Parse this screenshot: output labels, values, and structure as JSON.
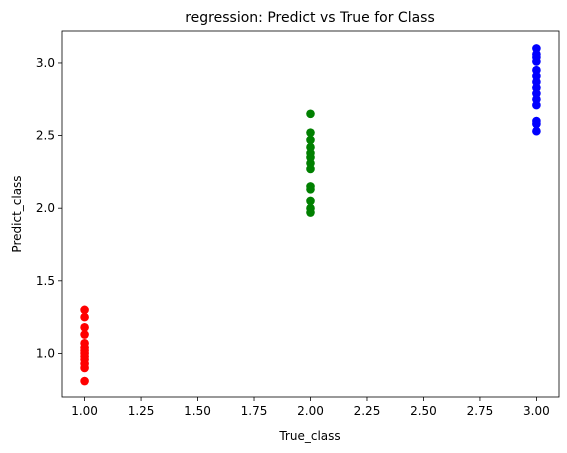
{
  "chart_data": {
    "type": "scatter",
    "title": "regression: Predict vs True for Class",
    "xlabel": "True_class",
    "ylabel": "Predict_class",
    "xlim": [
      0.9,
      3.1
    ],
    "ylim": [
      0.7,
      3.22
    ],
    "grid": false,
    "xticks": [
      "1.00",
      "1.25",
      "1.50",
      "1.75",
      "2.00",
      "2.25",
      "2.50",
      "2.75",
      "3.00"
    ],
    "xtick_values": [
      1.0,
      1.25,
      1.5,
      1.75,
      2.0,
      2.25,
      2.5,
      2.75,
      3.0
    ],
    "yticks": [
      "1.0",
      "1.5",
      "2.0",
      "2.5",
      "3.0"
    ],
    "ytick_values": [
      1.0,
      1.5,
      2.0,
      2.5,
      3.0
    ],
    "series": [
      {
        "color": "#ff0000",
        "points": [
          [
            1,
            0.81
          ],
          [
            1,
            0.9
          ],
          [
            1,
            0.93
          ],
          [
            1,
            0.96
          ],
          [
            1,
            0.98
          ],
          [
            1,
            1.0
          ],
          [
            1,
            1.02
          ],
          [
            1,
            1.04
          ],
          [
            1,
            1.07
          ],
          [
            1,
            1.13
          ],
          [
            1,
            1.18
          ],
          [
            1,
            1.25
          ],
          [
            1,
            1.3
          ]
        ]
      },
      {
        "color": "#008000",
        "points": [
          [
            2,
            1.97
          ],
          [
            2,
            2.0
          ],
          [
            2,
            2.05
          ],
          [
            2,
            2.13
          ],
          [
            2,
            2.15
          ],
          [
            2,
            2.27
          ],
          [
            2,
            2.31
          ],
          [
            2,
            2.35
          ],
          [
            2,
            2.38
          ],
          [
            2,
            2.42
          ],
          [
            2,
            2.47
          ],
          [
            2,
            2.52
          ],
          [
            2,
            2.65
          ]
        ]
      },
      {
        "color": "#0000ff",
        "points": [
          [
            3,
            2.53
          ],
          [
            3,
            2.58
          ],
          [
            3,
            2.6
          ],
          [
            3,
            2.71
          ],
          [
            3,
            2.75
          ],
          [
            3,
            2.79
          ],
          [
            3,
            2.83
          ],
          [
            3,
            2.87
          ],
          [
            3,
            2.91
          ],
          [
            3,
            2.95
          ],
          [
            3,
            3.01
          ],
          [
            3,
            3.04
          ],
          [
            3,
            3.06
          ],
          [
            3,
            3.1
          ]
        ]
      }
    ]
  }
}
